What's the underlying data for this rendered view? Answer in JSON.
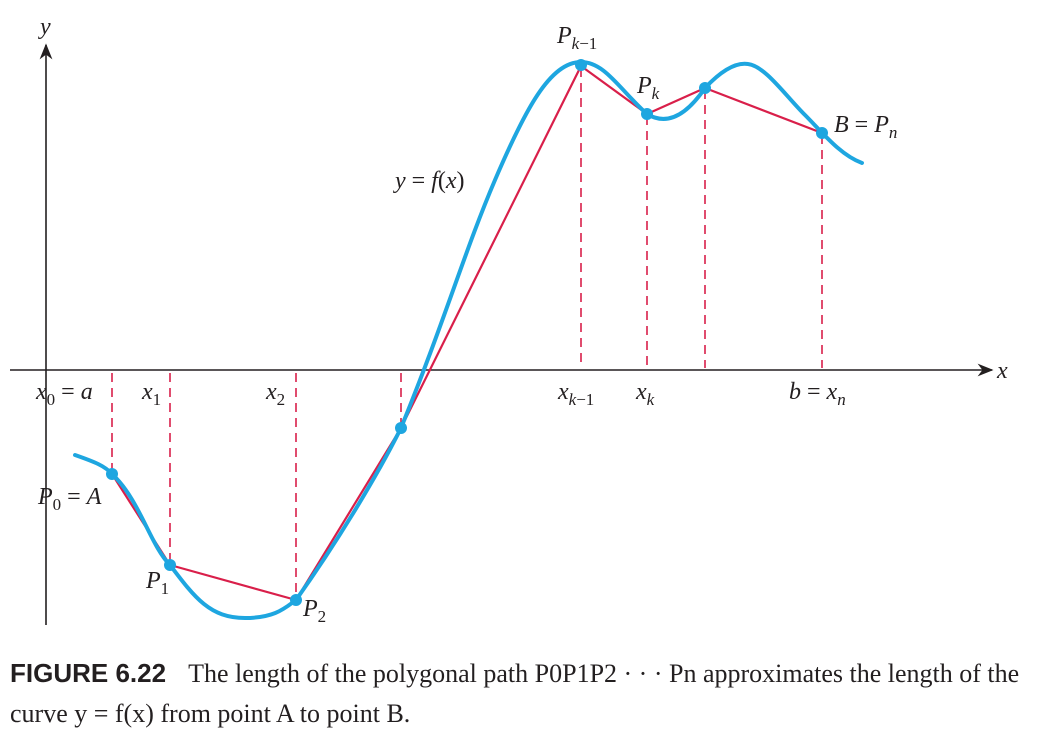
{
  "colors": {
    "curve": "#1ea6e0",
    "polygon": "#d91f4a",
    "axis": "#231f20",
    "point": "#1ea6e0"
  },
  "axes": {
    "x_label": "x",
    "y_label": "y"
  },
  "curve_label": "y = f(x)",
  "point_labels": {
    "p0": "P0 = A",
    "p1": "P1",
    "p2": "P2",
    "pk_1": "Pk−1",
    "pk": "Pk",
    "pn": "B = Pn"
  },
  "tick_labels": {
    "x0": "x0 = a",
    "x1": "x1",
    "x2": "x2",
    "xk_1": "xk−1",
    "xk": "xk",
    "xn": "b = xn"
  },
  "caption": {
    "figure_number": "FIGURE 6.22",
    "text": "The length of the polygonal path P0P1P2 · · · Pn approximates the length of the curve y = f(x) from point A to point B."
  }
}
